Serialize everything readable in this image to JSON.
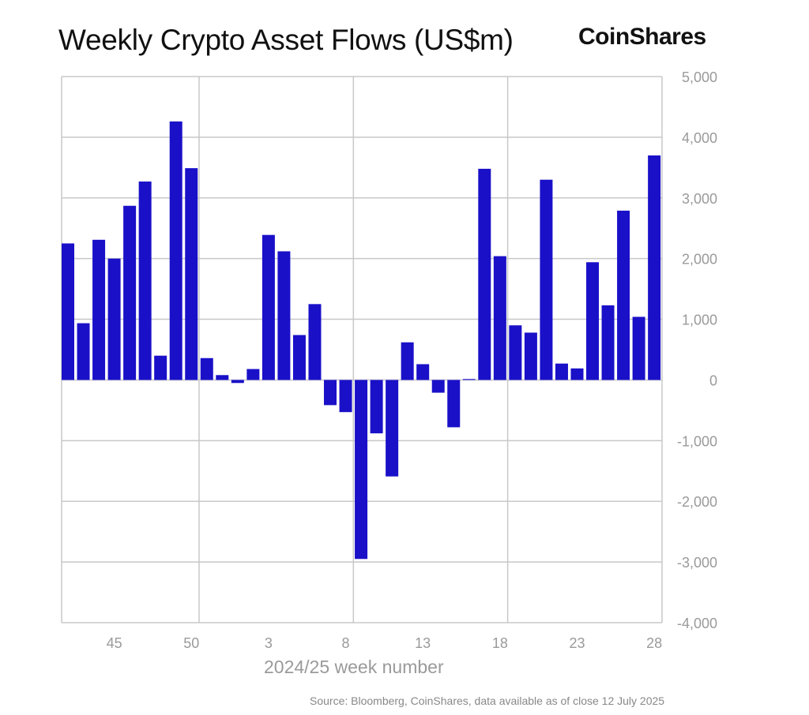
{
  "chart_data": {
    "type": "bar",
    "title": "Weekly Crypto Asset Flows (US$m)",
    "xlabel": "2024/25 week number",
    "ylabel": "",
    "ylim": [
      -4000,
      5000
    ],
    "yticks": [
      5000,
      4000,
      3000,
      2000,
      1000,
      0,
      -1000,
      -2000,
      -3000,
      -4000
    ],
    "ytick_labels": [
      "5,000",
      "4,000",
      "3,000",
      "2,000",
      "1,000",
      "0",
      "-1,000",
      "-2,000",
      "-3,000",
      "-4,000"
    ],
    "xtick_labels": [
      "45",
      "50",
      "3",
      "8",
      "13",
      "18",
      "23",
      "28"
    ],
    "y_axis_position": "right",
    "grid": true,
    "bar_color": "#1a10c8",
    "categories": [
      "42",
      "43",
      "44",
      "45",
      "46",
      "47",
      "48",
      "49",
      "50",
      "51",
      "52",
      "1",
      "2",
      "3",
      "4",
      "5",
      "6",
      "7",
      "8",
      "9",
      "10",
      "11",
      "12",
      "13",
      "14",
      "15",
      "16",
      "17",
      "18",
      "19",
      "20",
      "21",
      "22",
      "23",
      "24",
      "25",
      "26",
      "27",
      "28"
    ],
    "values": [
      2250,
      935,
      2310,
      2000,
      2870,
      3270,
      400,
      4260,
      3490,
      360,
      80,
      -50,
      180,
      2390,
      2120,
      740,
      1250,
      -415,
      -530,
      -2950,
      -880,
      -1590,
      620,
      260,
      -210,
      -780,
      15,
      3480,
      2040,
      900,
      780,
      3300,
      270,
      190,
      1940,
      1230,
      2790,
      1040,
      3700
    ]
  },
  "logo": "CoinShares",
  "source": "Source: Bloomberg, CoinShares, data available as of close 12 July 2025"
}
